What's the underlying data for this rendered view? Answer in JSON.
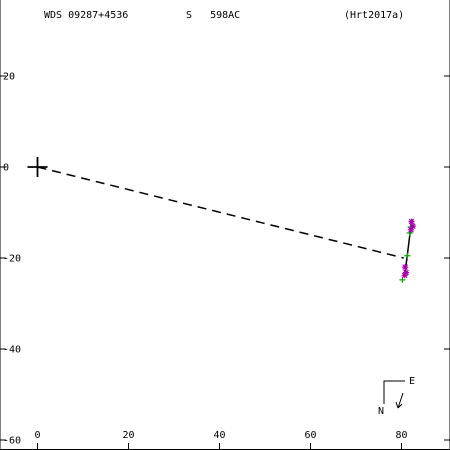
{
  "header": {
    "wds_id": "WDS 09287+4536",
    "discoverer": "S   598AC",
    "orbit_ref": "(Hrt2017a)"
  },
  "compass": {
    "north": "N",
    "east": "E"
  },
  "chart_data": {
    "type": "scatter",
    "title": "",
    "xlabel": "",
    "ylabel": "",
    "xlim": [
      -8,
      90
    ],
    "ylim": [
      -60,
      34
    ],
    "x_ticks": [
      0,
      20,
      40,
      60,
      80
    ],
    "y_ticks": [
      20,
      0,
      -20,
      -40,
      -60
    ],
    "x_tick_labels": [
      "0",
      "20",
      "40",
      "60",
      "80"
    ],
    "y_tick_labels": [
      "20",
      "0",
      "-20",
      "-40",
      "-60"
    ],
    "grid": false,
    "primary": {
      "x": 0,
      "y": 0,
      "marker": "cross"
    },
    "series": [
      {
        "kind": "dashed-line",
        "color": "#000000",
        "points": [
          [
            0,
            0
          ],
          [
            80.5,
            -20
          ]
        ]
      },
      {
        "kind": "orbit-arc",
        "color": "#000000",
        "points": [
          [
            82.3,
            -11.5
          ],
          [
            81.7,
            -16
          ],
          [
            81.2,
            -20
          ],
          [
            80.7,
            -23.5
          ]
        ]
      },
      {
        "kind": "observations",
        "marker": "plus",
        "color": "#00aa00",
        "points": [
          [
            81.8,
            -14.5
          ],
          [
            82.0,
            -13.2
          ],
          [
            81.3,
            -19.5
          ],
          [
            80.2,
            -24.8
          ]
        ]
      },
      {
        "kind": "observations",
        "marker": "asterisk",
        "color": "#aa00aa",
        "points": [
          [
            82.2,
            -12.0
          ],
          [
            82.5,
            -13.0
          ],
          [
            82.1,
            -13.8
          ],
          [
            80.8,
            -22.0
          ],
          [
            81.0,
            -23.2
          ],
          [
            80.7,
            -23.8
          ]
        ]
      }
    ]
  }
}
